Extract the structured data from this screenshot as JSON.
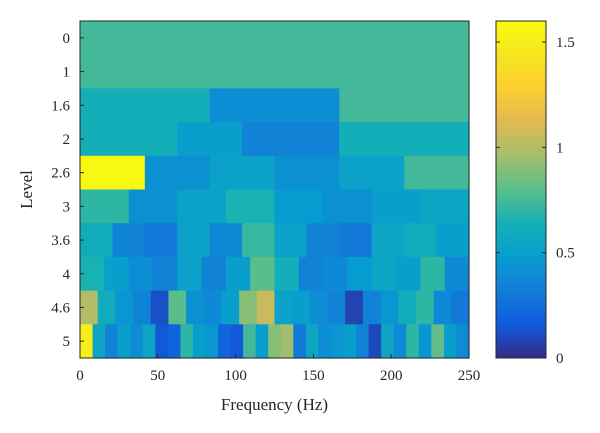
{
  "chart_data": {
    "type": "heatmap",
    "title": "",
    "xlabel": "Frequency (Hz)",
    "ylabel": "Level",
    "xlim": [
      0,
      250
    ],
    "x_ticks": [
      0,
      50,
      100,
      150,
      200,
      250
    ],
    "y_categories": [
      "0",
      "1",
      "1.6",
      "2",
      "2.6",
      "3",
      "3.6",
      "4",
      "4.6",
      "5"
    ],
    "colorbar": {
      "colormap": "parula",
      "lim": [
        0,
        1.6
      ],
      "ticks": [
        0,
        0.5,
        1,
        1.5
      ]
    },
    "rows": [
      {
        "level": "0",
        "values": [
          0.75
        ]
      },
      {
        "level": "1",
        "values": [
          0.75
        ]
      },
      {
        "level": "1.6",
        "values": [
          0.62,
          0.62,
          0.4,
          0.4,
          0.75,
          0.75
        ]
      },
      {
        "level": "2",
        "values": [
          0.62,
          0.62,
          0.62,
          0.5,
          0.5,
          0.35,
          0.35,
          0.35,
          0.62,
          0.62,
          0.62,
          0.62
        ]
      },
      {
        "level": "2.6",
        "values": [
          1.58,
          1.58,
          0.42,
          0.42,
          0.52,
          0.52,
          0.42,
          0.42,
          0.52,
          0.52,
          0.75,
          0.75
        ]
      },
      {
        "level": "3",
        "values": [
          0.7,
          0.7,
          0.42,
          0.42,
          0.52,
          0.52,
          0.65,
          0.65,
          0.48,
          0.48,
          0.42,
          0.42,
          0.5,
          0.5,
          0.55,
          0.55
        ]
      },
      {
        "level": "3.6",
        "values": [
          0.6,
          0.35,
          0.3,
          0.52,
          0.38,
          0.72,
          0.52,
          0.35,
          0.3,
          0.55,
          0.6,
          0.5
        ]
      },
      {
        "level": "4",
        "values": [
          0.65,
          0.5,
          0.4,
          0.35,
          0.52,
          0.35,
          0.5,
          0.8,
          0.62,
          0.35,
          0.38,
          0.48,
          0.55,
          0.5,
          0.7,
          0.38
        ]
      },
      {
        "level": "4.6",
        "values": [
          1.0,
          0.6,
          0.45,
          0.35,
          0.12,
          0.8,
          0.42,
          0.38,
          0.5,
          0.9,
          1.05,
          0.52,
          0.5,
          0.4,
          0.35,
          0.08,
          0.35,
          0.45,
          0.6,
          0.7,
          0.38,
          0.3
        ]
      },
      {
        "level": "5",
        "values": [
          1.5,
          0.55,
          0.35,
          0.5,
          0.4,
          0.55,
          0.15,
          0.2,
          0.7,
          0.5,
          0.45,
          0.2,
          0.15,
          0.75,
          0.5,
          0.9,
          0.95,
          0.3,
          0.55,
          0.4,
          0.45,
          0.5,
          0.35,
          0.1,
          0.55,
          0.38,
          0.7,
          0.45,
          0.82,
          0.5,
          0.38
        ]
      }
    ]
  }
}
